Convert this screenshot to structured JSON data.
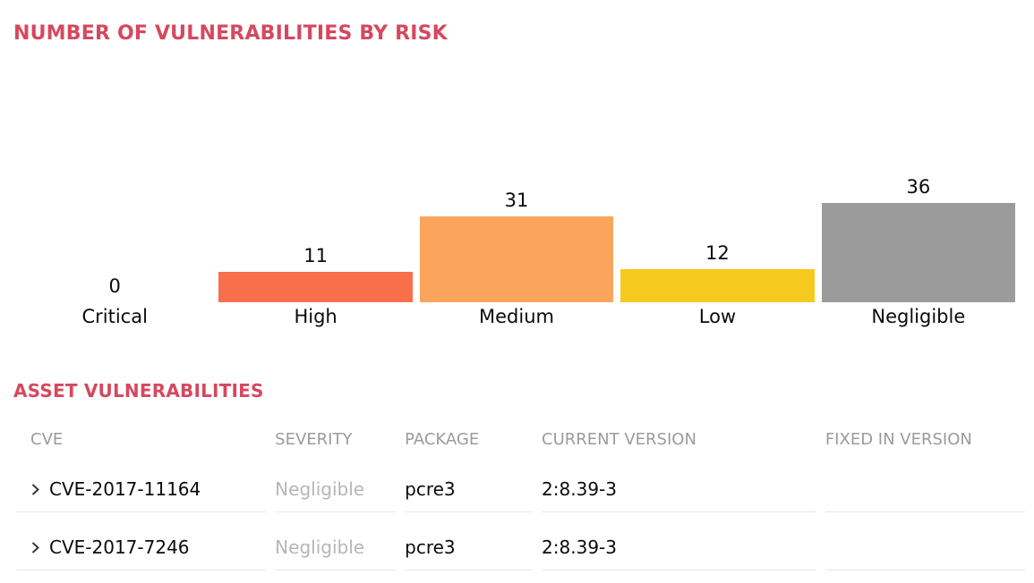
{
  "colors": {
    "accent_title": "#d6485f",
    "bar_high": "#f7704b",
    "bar_medium": "#fba55c",
    "bar_low": "#f6c91f",
    "bar_negligible": "#9b9b9b",
    "table_header_text": "#9b9b9b",
    "severity_text": "#b6b6b6",
    "row_border": "#e7e7e7"
  },
  "chart_data": {
    "type": "bar",
    "title": "NUMBER OF VULNERABILITIES BY RISK",
    "categories": [
      "Critical",
      "High",
      "Medium",
      "Low",
      "Negligible"
    ],
    "values": [
      0,
      11,
      31,
      12,
      36
    ],
    "bar_colors": [
      "",
      "#f7704b",
      "#fba55c",
      "#f6c91f",
      "#9b9b9b"
    ],
    "value_labels_shown": true,
    "ylim": [
      0,
      36
    ],
    "grid": false,
    "axes_shown": false,
    "legend": "none"
  },
  "table_section": {
    "title": "ASSET VULNERABILITIES",
    "columns": [
      "CVE",
      "SEVERITY",
      "PACKAGE",
      "CURRENT VERSION",
      "FIXED IN VERSION"
    ],
    "rows": [
      {
        "cve": "CVE-2017-11164",
        "severity": "Negligible",
        "package": "pcre3",
        "current_version": "2:8.39-3",
        "fixed_in_version": ""
      },
      {
        "cve": "CVE-2017-7246",
        "severity": "Negligible",
        "package": "pcre3",
        "current_version": "2:8.39-3",
        "fixed_in_version": ""
      }
    ]
  }
}
